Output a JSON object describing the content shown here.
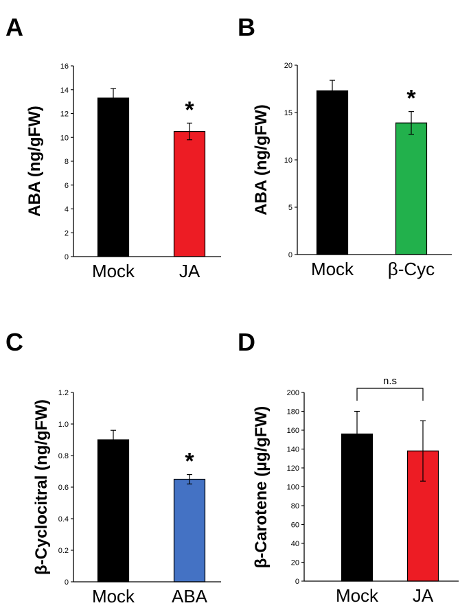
{
  "chart_data": [
    {
      "type": "bar",
      "panel": "A",
      "ylabel": "ABA (ng/gFW)",
      "categories": [
        "Mock",
        "JA"
      ],
      "values": [
        13.3,
        10.5
      ],
      "errors": [
        0.8,
        0.7
      ],
      "colors": [
        "#000000",
        "#ed1c24"
      ],
      "ylim": [
        0,
        16
      ],
      "yticks": [
        0,
        2,
        4,
        6,
        8,
        10,
        12,
        14,
        16
      ],
      "significance": [
        {
          "bar": 1,
          "label": "*"
        }
      ]
    },
    {
      "type": "bar",
      "panel": "B",
      "ylabel": "ABA (ng/gFW)",
      "categories": [
        "Mock",
        "β-Cyc"
      ],
      "values": [
        17.3,
        13.9
      ],
      "errors": [
        1.1,
        1.2
      ],
      "colors": [
        "#000000",
        "#22b14c"
      ],
      "ylim": [
        0,
        20
      ],
      "yticks": [
        0,
        5,
        10,
        15,
        20
      ],
      "significance": [
        {
          "bar": 1,
          "label": "*"
        }
      ]
    },
    {
      "type": "bar",
      "panel": "C",
      "ylabel": "β-Cyclocitral (ng/gFW)",
      "categories": [
        "Mock",
        "ABA"
      ],
      "values": [
        0.9,
        0.65
      ],
      "errors": [
        0.06,
        0.03
      ],
      "colors": [
        "#000000",
        "#4472c4"
      ],
      "ylim": [
        0,
        1.2
      ],
      "yticks": [
        0,
        0.2,
        0.4,
        0.6,
        0.8,
        1.0,
        1.2
      ],
      "yticklabels": [
        "0",
        "0.2",
        "0.4",
        "0.6",
        "0.8",
        "1.0",
        "1.2"
      ],
      "significance": [
        {
          "bar": 1,
          "label": "*"
        }
      ]
    },
    {
      "type": "bar",
      "panel": "D",
      "ylabel": "β-Carotene (µg/gFW)",
      "categories": [
        "Mock",
        "JA"
      ],
      "values": [
        156,
        138
      ],
      "errors": [
        24,
        32
      ],
      "colors": [
        "#000000",
        "#ed1c24"
      ],
      "ylim": [
        0,
        200
      ],
      "yticks": [
        0,
        20,
        40,
        60,
        80,
        100,
        120,
        140,
        160,
        180,
        200
      ],
      "bracket": {
        "label": "n.s"
      }
    }
  ]
}
